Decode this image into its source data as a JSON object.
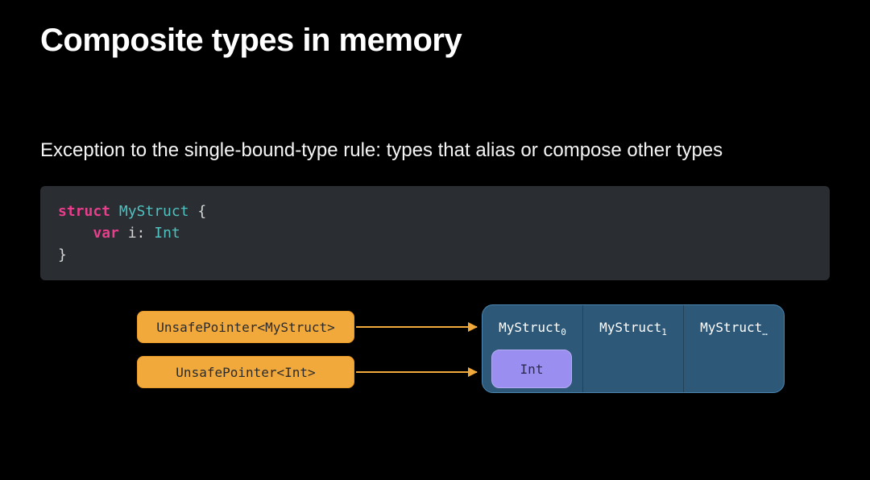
{
  "title": "Composite types in memory",
  "subtitle": "Exception to the single-bound-type rule: types that alias or compose other types",
  "code": {
    "keyword_struct": "struct",
    "struct_name": "MyStruct",
    "open_brace": " {",
    "indent": "    ",
    "keyword_var": "var",
    "member_name": " i: ",
    "member_type": "Int",
    "close_brace": "}"
  },
  "diagram": {
    "pointer1_label": "UnsafePointer<MyStruct>",
    "pointer2_label": "UnsafePointer<Int>",
    "cells": {
      "cell0_base": "MyStruct",
      "cell0_sub": "0",
      "cell1_base": "MyStruct",
      "cell1_sub": "1",
      "cell2_base": "MyStruct",
      "cell2_sub": "…"
    },
    "int_box_label": "Int",
    "colors": {
      "pointer_fill": "#f2a93c",
      "pointer_border": "#e89a28",
      "arrow": "#f2a93c",
      "memstrip_fill": "#2e5878",
      "memstrip_border": "#4a86b0",
      "intbox_fill": "#9a8ef0",
      "intbox_border": "#b5acf5",
      "intbox_text": "#2b2b55",
      "code_bg": "#2a2d32"
    }
  }
}
